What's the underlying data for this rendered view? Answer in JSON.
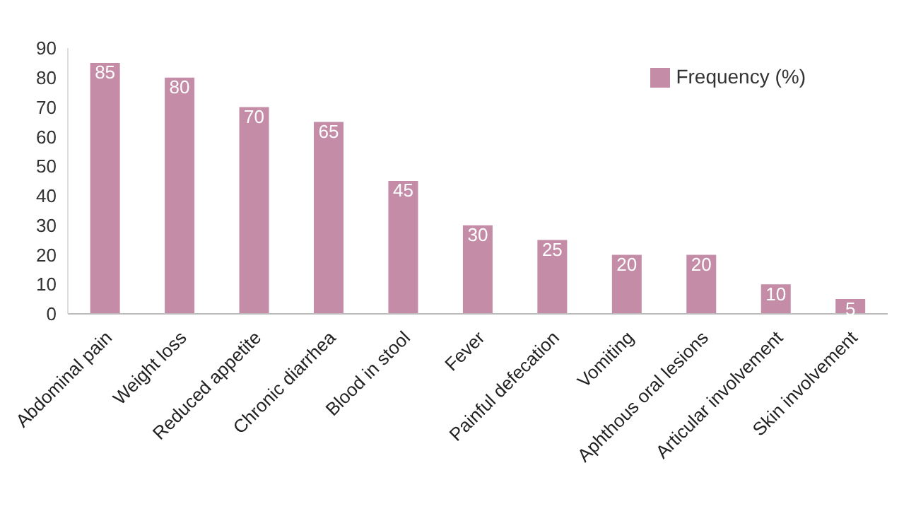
{
  "chart_data": {
    "type": "bar",
    "categories": [
      "Abdominal pain",
      "Weight loss",
      "Reduced appetite",
      "Chronic diarrhea",
      "Blood in stool",
      "Fever",
      "Painful defecation",
      "Vomiting",
      "Aphthous oral lesions",
      "Articular involvement",
      "Skin involvement"
    ],
    "series": [
      {
        "name": "Frequency (%)",
        "color": "#c48ca6",
        "values": [
          85,
          80,
          70,
          65,
          45,
          30,
          25,
          20,
          20,
          10,
          5
        ]
      }
    ],
    "ylim": [
      0,
      90
    ],
    "yticks": [
      0,
      10,
      20,
      30,
      40,
      50,
      60,
      70,
      80,
      90
    ],
    "data_labels": true,
    "legend": "top right",
    "grid": false
  }
}
